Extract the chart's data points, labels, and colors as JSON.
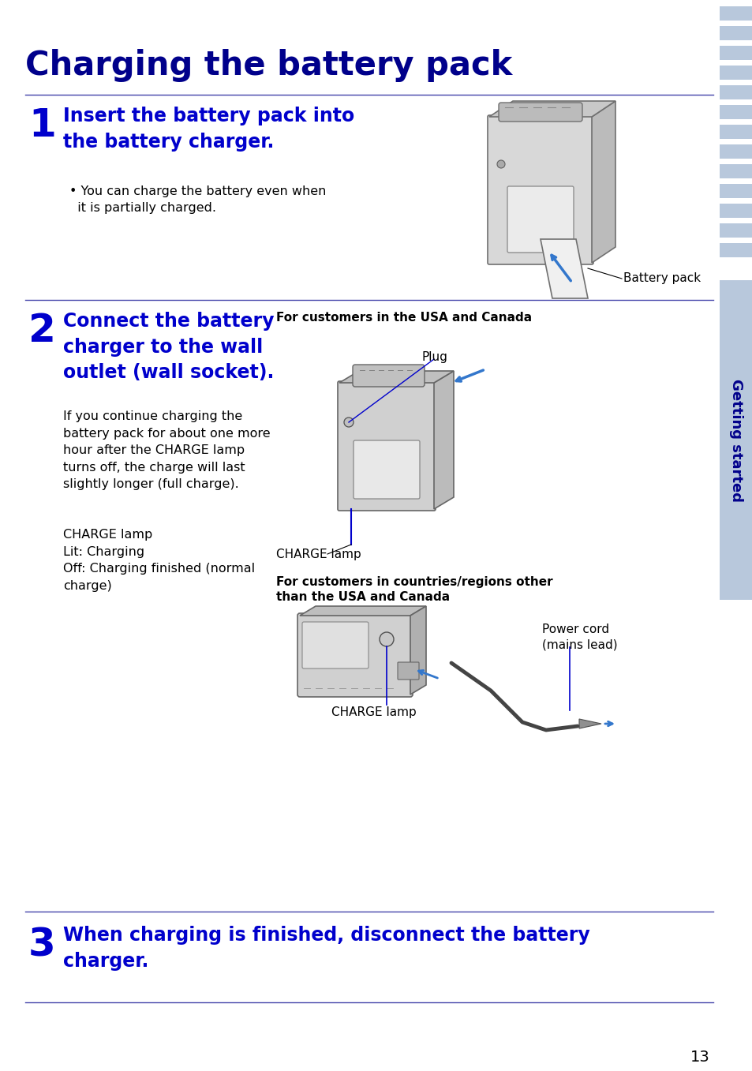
{
  "title": "Charging the battery pack",
  "title_color": "#00008B",
  "title_fontsize": 30,
  "bg_color": "#FFFFFF",
  "sidebar_color": "#B8C8DC",
  "sidebar_text": "Getting started",
  "sidebar_text_color": "#00008B",
  "accent_color": "#0000CC",
  "line_color": "#4444AA",
  "black": "#000000",
  "step1_number": "1",
  "step1_heading": "Insert the battery pack into\nthe battery charger.",
  "step1_bullet": "• You can charge the battery even when\n  it is partially charged.",
  "step1_image_label": "Battery pack",
  "step2_number": "2",
  "step2_heading": "Connect the battery\ncharger to the wall\noutlet (wall socket).",
  "step2_body": "If you continue charging the\nbattery pack for about one more\nhour after the CHARGE lamp\nturns off, the charge will last\nslightly longer (full charge).",
  "step2_lamp_text": "CHARGE lamp\nLit: Charging\nOff: Charging finished (normal\ncharge)",
  "step2_usa_label": "For customers in the USA and Canada",
  "step2_plug_label": "Plug",
  "step2_charge_lamp1": "CHARGE lamp",
  "step2_other_label": "For customers in countries/regions other\nthan the USA and Canada",
  "step2_power_cord": "Power cord\n(mains lead)",
  "step2_charge_lamp2": "CHARGE lamp",
  "step3_number": "3",
  "step3_heading": "When charging is finished, disconnect the battery\ncharger.",
  "page_number": "13",
  "heading_fontsize": 17,
  "step_num_fontsize": 36,
  "body_fontsize": 11.5,
  "label_fontsize": 11,
  "bold_label_fontsize": 11
}
